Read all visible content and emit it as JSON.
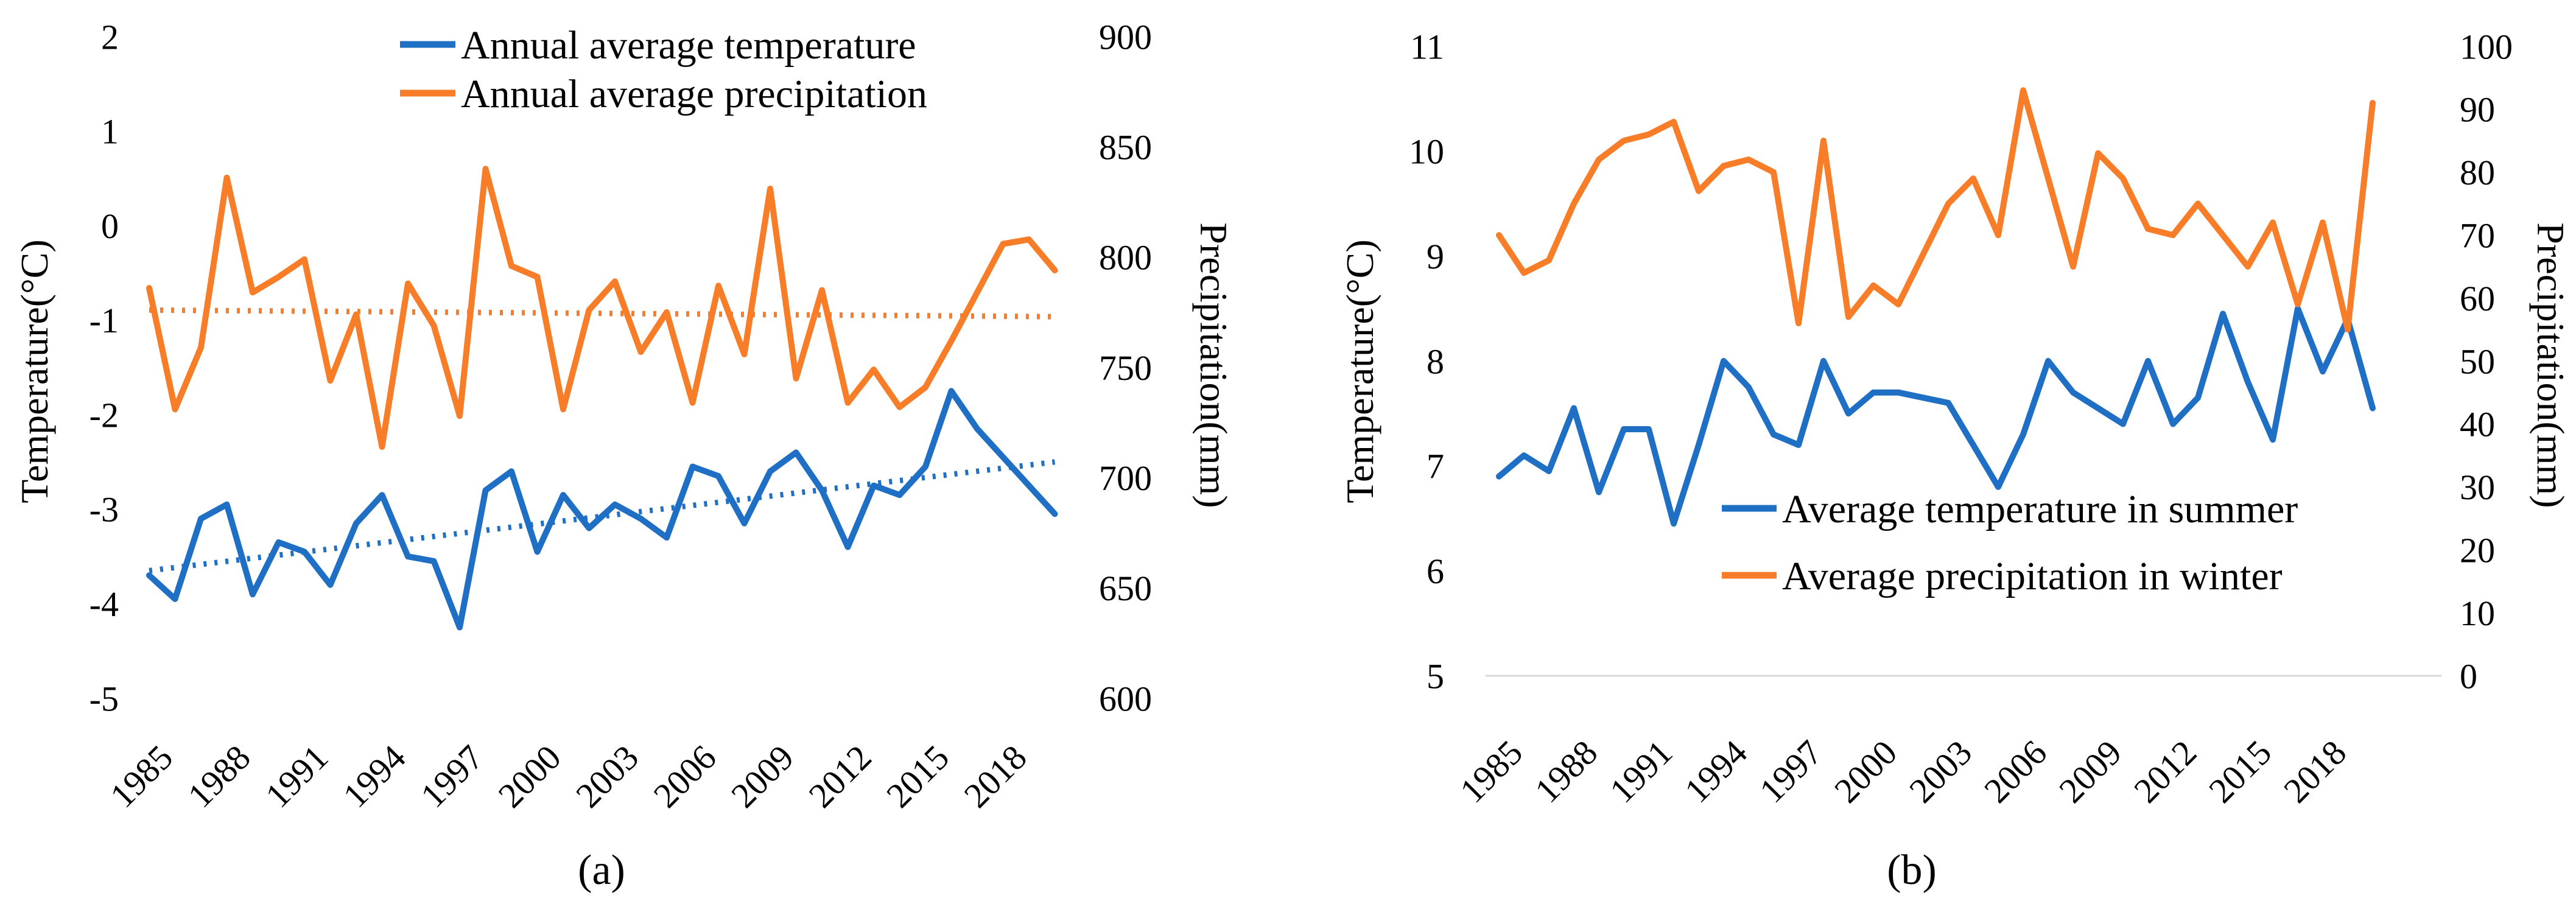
{
  "figure": {
    "captions": {
      "a": "(a)",
      "b": "(b)"
    }
  },
  "chart_data": [
    {
      "id": "a",
      "type": "line",
      "caption": "(a)",
      "x_years": [
        1985,
        1986,
        1987,
        1988,
        1989,
        1990,
        1991,
        1992,
        1993,
        1994,
        1995,
        1996,
        1997,
        1998,
        1999,
        2000,
        2001,
        2002,
        2003,
        2004,
        2005,
        2006,
        2007,
        2008,
        2009,
        2010,
        2011,
        2012,
        2013,
        2014,
        2015,
        2016,
        2017,
        2018,
        2019,
        2020
      ],
      "x_tick_labels": [
        1985,
        1988,
        1991,
        1994,
        1997,
        2000,
        2003,
        2006,
        2009,
        2012,
        2015,
        2018
      ],
      "left_axis": {
        "label": "Temperature(°C)",
        "ticks": [
          2,
          1,
          0,
          -1,
          -2,
          -3,
          -4,
          -5
        ],
        "range": [
          -5,
          2
        ]
      },
      "right_axis": {
        "label": "Precipitation(mm)",
        "ticks": [
          900,
          850,
          800,
          750,
          700,
          650,
          600
        ],
        "range": [
          600,
          900
        ]
      },
      "legend_position": "top-center",
      "grid": "off",
      "series": [
        {
          "name": "Annual average temperature",
          "axis": "left",
          "color": "#1f6fc5",
          "values": [
            -3.7,
            -3.95,
            -3.1,
            -2.95,
            -3.9,
            -3.35,
            -3.45,
            -3.8,
            -3.15,
            -2.85,
            -3.5,
            -3.55,
            -4.25,
            -2.8,
            -2.6,
            -3.45,
            -2.85,
            -3.2,
            -2.95,
            -3.1,
            -3.3,
            -2.55,
            -2.65,
            -3.15,
            -2.6,
            -2.4,
            -2.8,
            -3.4,
            -2.75,
            -2.85,
            -2.55,
            -1.75,
            -2.15,
            -2.45,
            -2.75,
            -3.05
          ]
        },
        {
          "name": "Annual average precipitation",
          "axis": "right",
          "color": "#f77d28",
          "values": [
            786,
            731,
            759,
            836,
            784,
            791,
            799,
            744,
            774,
            714,
            788,
            769,
            728,
            840,
            796,
            791,
            731,
            776,
            789,
            757,
            775,
            734,
            787,
            756,
            831,
            745,
            785,
            734,
            749,
            732,
            741,
            762,
            784,
            806,
            808,
            794
          ]
        }
      ],
      "trendlines": [
        {
          "for": "Annual average temperature",
          "axis": "left",
          "style": "dotted",
          "color": "#1f6fc5",
          "start": -3.65,
          "end": -2.5
        },
        {
          "for": "Annual average precipitation",
          "axis": "right",
          "style": "dotted",
          "color": "#f77d28",
          "start": 776,
          "end": 773
        }
      ]
    },
    {
      "id": "b",
      "type": "line",
      "caption": "(b)",
      "x_years": [
        1985,
        1986,
        1987,
        1988,
        1989,
        1990,
        1991,
        1992,
        1993,
        1994,
        1995,
        1996,
        1997,
        1998,
        1999,
        2000,
        2001,
        2002,
        2003,
        2004,
        2005,
        2006,
        2007,
        2008,
        2009,
        2010,
        2011,
        2012,
        2013,
        2014,
        2015,
        2016,
        2017,
        2018,
        2019,
        2020
      ],
      "x_tick_labels": [
        1985,
        1988,
        1991,
        1994,
        1997,
        2000,
        2003,
        2006,
        2009,
        2012,
        2015,
        2018
      ],
      "left_axis": {
        "label": "Temperature(°C)",
        "ticks": [
          11,
          10,
          9,
          8,
          7,
          6,
          5
        ],
        "range": [
          5,
          11
        ]
      },
      "right_axis": {
        "label": "Precipitation(mm)",
        "ticks": [
          100,
          90,
          80,
          70,
          60,
          50,
          40,
          30,
          20,
          10,
          0
        ],
        "range": [
          0,
          100
        ]
      },
      "legend_position": "inside-lower-middle",
      "grid": "off",
      "baseline_at_left_value": 5,
      "series": [
        {
          "name": "Average temperature in summer",
          "axis": "left",
          "color": "#1f6fc5",
          "values": [
            6.9,
            7.1,
            6.95,
            7.55,
            6.75,
            7.35,
            7.35,
            6.45,
            7.2,
            8.0,
            7.75,
            7.3,
            7.2,
            8.0,
            7.5,
            7.7,
            7.7,
            7.65,
            7.6,
            7.2,
            6.8,
            7.3,
            8.0,
            7.7,
            7.55,
            7.4,
            8.0,
            7.4,
            7.65,
            8.45,
            7.8,
            7.25,
            8.5,
            7.9,
            8.4,
            7.55
          ]
        },
        {
          "name": "Average precipitation in winter",
          "axis": "right",
          "color": "#f77d28",
          "values": [
            70,
            64,
            66,
            75,
            82,
            85,
            86,
            88,
            77,
            81,
            82,
            80,
            56,
            85,
            57,
            62,
            59,
            67,
            75,
            79,
            70,
            93,
            79,
            65,
            83,
            79,
            71,
            70,
            75,
            70,
            65,
            72,
            59,
            72,
            55,
            91
          ]
        }
      ],
      "trendlines": []
    }
  ]
}
